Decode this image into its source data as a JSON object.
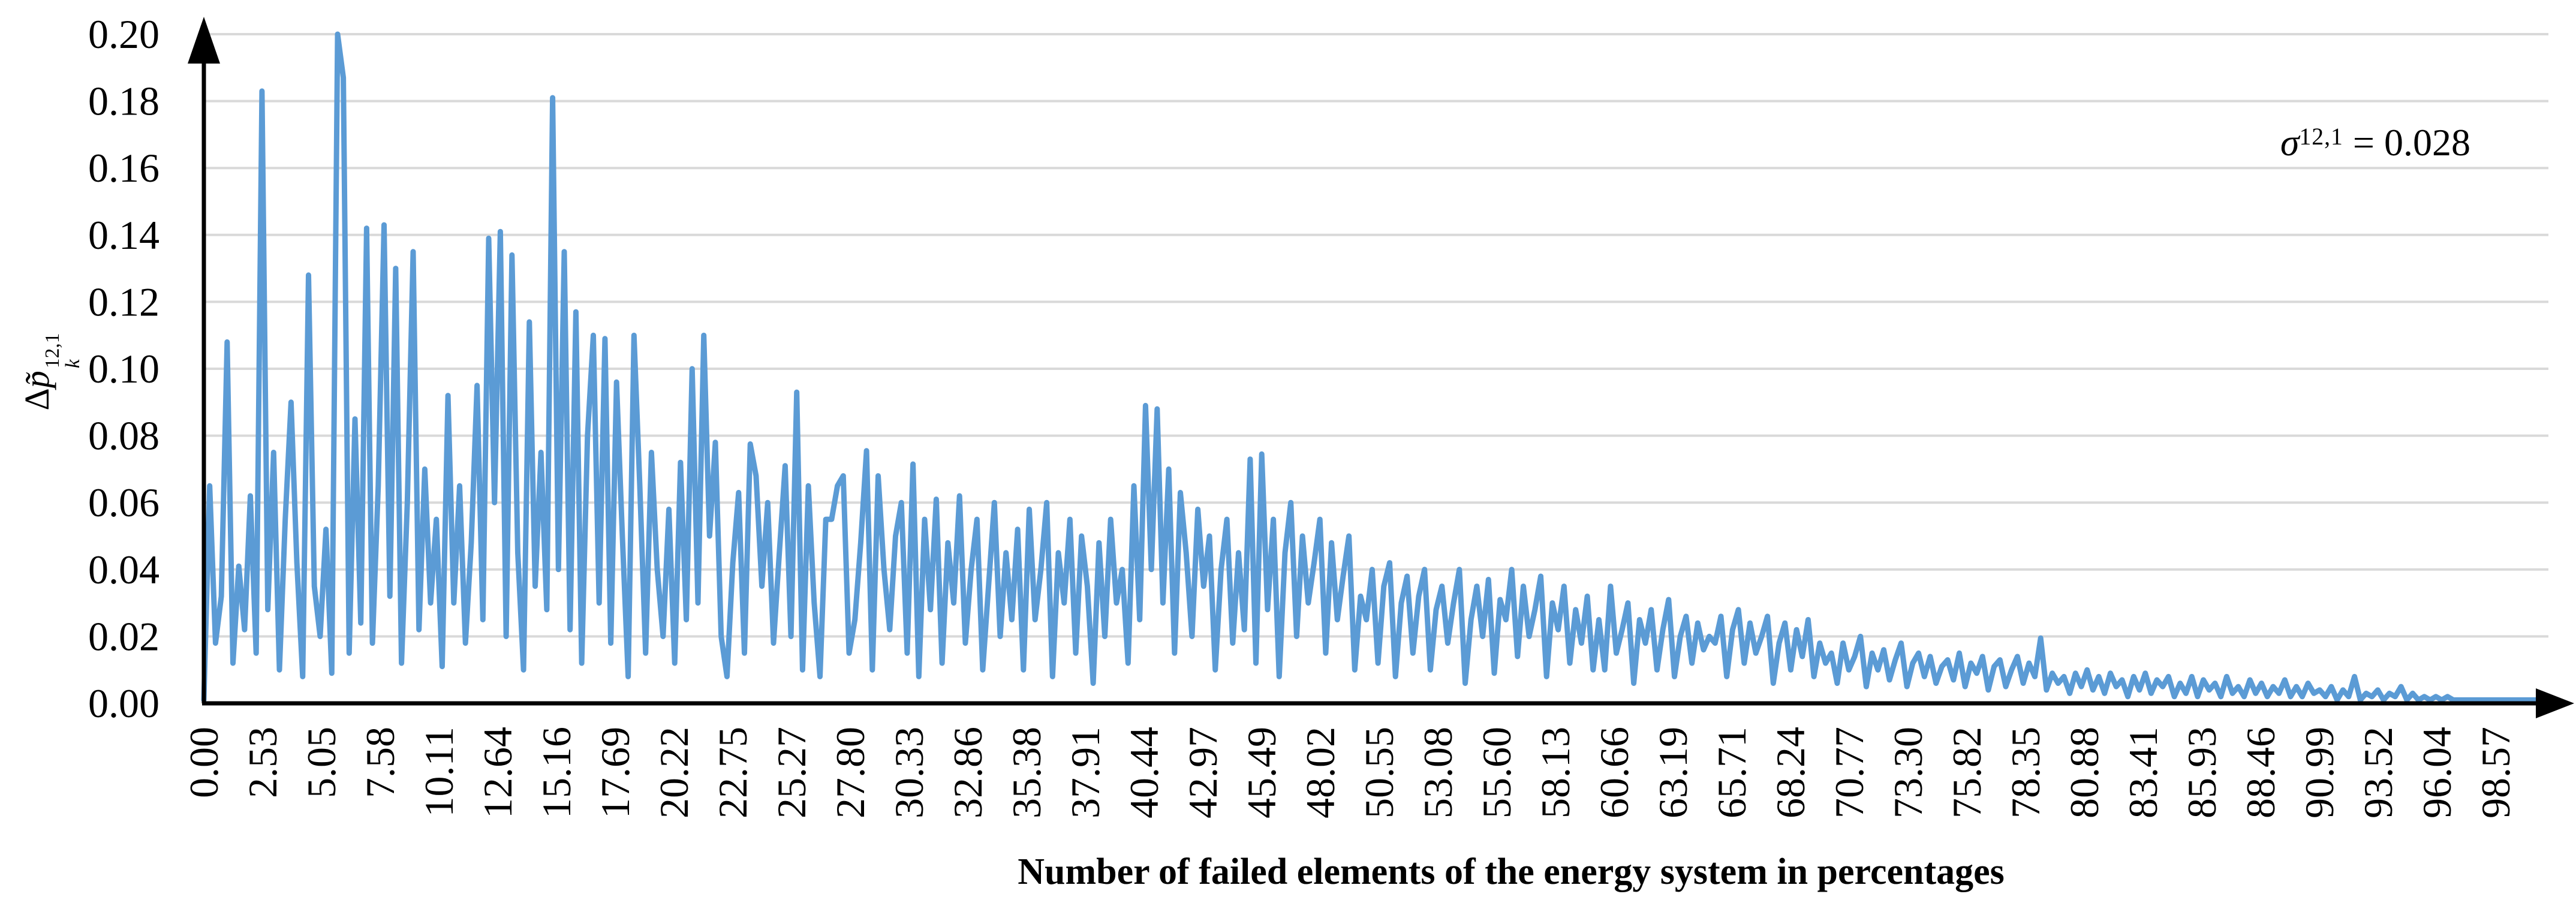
{
  "chart_data": {
    "type": "line",
    "title": "",
    "xlabel": "Number of failed elements of the energy system in percentages",
    "ylabel_plain": "Δp̃_k^{12,1}",
    "y_title": {
      "prefix": "Δ",
      "letter": "p̃",
      "sup": "12,1",
      "sub": "k"
    },
    "annotation": {
      "symbol": "σ",
      "sup": "12,1",
      "rest": " = 0.028",
      "plain": "σ^{12,1} = 0.028"
    },
    "legend": "none",
    "grid": "horizontal",
    "colors": {
      "line": "#5B9BD5",
      "gridline": "#D9D9D9",
      "axis": "#000000"
    },
    "ylim": [
      0,
      0.2
    ],
    "xlim": [
      0,
      101
    ],
    "y_tick_labels": [
      "0.00",
      "0.02",
      "0.04",
      "0.06",
      "0.08",
      "0.10",
      "0.12",
      "0.14",
      "0.16",
      "0.18",
      "0.20"
    ],
    "x_tick_labels": [
      "0.00",
      "2.53",
      "5.05",
      "7.58",
      "10.11",
      "12.64",
      "15.16",
      "17.69",
      "20.22",
      "22.75",
      "25.27",
      "27.80",
      "30.33",
      "32.86",
      "35.38",
      "37.91",
      "40.44",
      "42.97",
      "45.49",
      "48.02",
      "50.55",
      "53.08",
      "55.60",
      "58.13",
      "60.66",
      "63.19",
      "65.71",
      "68.24",
      "70.77",
      "73.30",
      "75.82",
      "78.35",
      "80.88",
      "83.41",
      "85.93",
      "88.46",
      "90.99",
      "93.52",
      "96.04",
      "98.57"
    ],
    "x_start": 0,
    "x_step": 0.25,
    "values": [
      0.001,
      0.065,
      0.018,
      0.032,
      0.108,
      0.012,
      0.041,
      0.022,
      0.062,
      0.015,
      0.183,
      0.028,
      0.075,
      0.01,
      0.055,
      0.09,
      0.042,
      0.008,
      0.128,
      0.035,
      0.02,
      0.052,
      0.009,
      0.2,
      0.187,
      0.015,
      0.085,
      0.024,
      0.142,
      0.018,
      0.065,
      0.143,
      0.032,
      0.13,
      0.012,
      0.06,
      0.135,
      0.022,
      0.07,
      0.03,
      0.055,
      0.011,
      0.092,
      0.03,
      0.065,
      0.018,
      0.048,
      0.095,
      0.025,
      0.139,
      0.06,
      0.141,
      0.02,
      0.134,
      0.045,
      0.01,
      0.114,
      0.035,
      0.075,
      0.028,
      0.181,
      0.04,
      0.135,
      0.022,
      0.117,
      0.012,
      0.08,
      0.11,
      0.03,
      0.109,
      0.018,
      0.096,
      0.05,
      0.008,
      0.11,
      0.065,
      0.015,
      0.075,
      0.04,
      0.02,
      0.058,
      0.012,
      0.072,
      0.025,
      0.1,
      0.03,
      0.11,
      0.05,
      0.078,
      0.02,
      0.008,
      0.042,
      0.063,
      0.015,
      0.0775,
      0.068,
      0.035,
      0.06,
      0.018,
      0.045,
      0.071,
      0.02,
      0.093,
      0.01,
      0.065,
      0.03,
      0.008,
      0.055,
      0.055,
      0.065,
      0.068,
      0.015,
      0.025,
      0.048,
      0.0755,
      0.01,
      0.068,
      0.04,
      0.022,
      0.05,
      0.06,
      0.015,
      0.0715,
      0.008,
      0.055,
      0.028,
      0.061,
      0.012,
      0.048,
      0.03,
      0.062,
      0.018,
      0.04,
      0.055,
      0.01,
      0.035,
      0.06,
      0.02,
      0.045,
      0.025,
      0.052,
      0.01,
      0.058,
      0.025,
      0.04,
      0.06,
      0.008,
      0.045,
      0.03,
      0.055,
      0.015,
      0.05,
      0.035,
      0.006,
      0.048,
      0.02,
      0.055,
      0.03,
      0.04,
      0.012,
      0.065,
      0.025,
      0.089,
      0.04,
      0.088,
      0.03,
      0.07,
      0.015,
      0.063,
      0.045,
      0.02,
      0.058,
      0.035,
      0.05,
      0.01,
      0.04,
      0.055,
      0.018,
      0.045,
      0.022,
      0.073,
      0.012,
      0.0745,
      0.028,
      0.055,
      0.008,
      0.045,
      0.06,
      0.02,
      0.05,
      0.03,
      0.042,
      0.055,
      0.015,
      0.048,
      0.025,
      0.038,
      0.05,
      0.01,
      0.032,
      0.025,
      0.04,
      0.012,
      0.035,
      0.042,
      0.008,
      0.03,
      0.038,
      0.015,
      0.032,
      0.04,
      0.01,
      0.028,
      0.035,
      0.018,
      0.03,
      0.04,
      0.006,
      0.025,
      0.035,
      0.02,
      0.037,
      0.009,
      0.031,
      0.025,
      0.04,
      0.014,
      0.035,
      0.02,
      0.028,
      0.038,
      0.008,
      0.03,
      0.022,
      0.035,
      0.012,
      0.028,
      0.018,
      0.032,
      0.01,
      0.025,
      0.01,
      0.035,
      0.015,
      0.022,
      0.03,
      0.006,
      0.025,
      0.018,
      0.028,
      0.01,
      0.022,
      0.031,
      0.008,
      0.02,
      0.026,
      0.012,
      0.024,
      0.016,
      0.02,
      0.018,
      0.026,
      0.008,
      0.022,
      0.028,
      0.012,
      0.024,
      0.015,
      0.02,
      0.026,
      0.006,
      0.018,
      0.024,
      0.01,
      0.022,
      0.014,
      0.025,
      0.008,
      0.018,
      0.012,
      0.015,
      0.006,
      0.018,
      0.01,
      0.014,
      0.02,
      0.005,
      0.015,
      0.01,
      0.016,
      0.007,
      0.013,
      0.018,
      0.005,
      0.012,
      0.015,
      0.008,
      0.014,
      0.006,
      0.011,
      0.013,
      0.007,
      0.015,
      0.005,
      0.012,
      0.009,
      0.014,
      0.004,
      0.011,
      0.013,
      0.005,
      0.01,
      0.014,
      0.006,
      0.012,
      0.008,
      0.0195,
      0.004,
      0.009,
      0.006,
      0.008,
      0.003,
      0.009,
      0.005,
      0.01,
      0.004,
      0.008,
      0.003,
      0.009,
      0.005,
      0.007,
      0.002,
      0.008,
      0.004,
      0.009,
      0.003,
      0.007,
      0.005,
      0.008,
      0.002,
      0.006,
      0.003,
      0.008,
      0.002,
      0.007,
      0.004,
      0.006,
      0.002,
      0.008,
      0.003,
      0.005,
      0.002,
      0.007,
      0.003,
      0.006,
      0.002,
      0.005,
      0.003,
      0.007,
      0.002,
      0.005,
      0.002,
      0.006,
      0.003,
      0.004,
      0.002,
      0.005,
      0.001,
      0.004,
      0.002,
      0.008,
      0.001,
      0.003,
      0.002,
      0.004,
      0.001,
      0.003,
      0.002,
      0.005,
      0.001,
      0.003,
      0.001,
      0.002,
      0.001,
      0.002,
      0.001,
      0.002,
      0.001,
      0.001,
      0.001,
      0.001,
      0.001,
      0.001,
      0.001,
      0.001,
      0.001,
      0.001,
      0.001,
      0.001,
      0.001,
      0.001,
      0.001,
      0.001,
      0.001
    ]
  }
}
